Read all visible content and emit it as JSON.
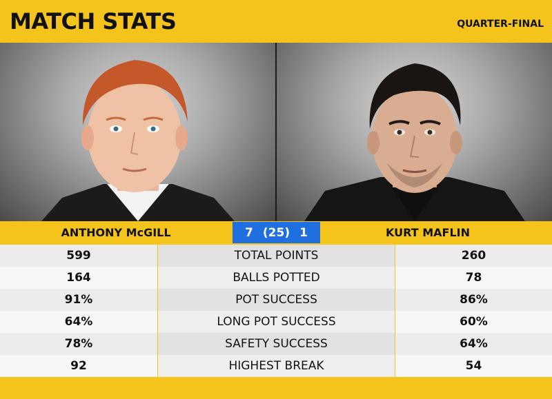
{
  "header": {
    "title": "MATCH STATS",
    "stage": "QUARTER-FINAL"
  },
  "players": {
    "left": {
      "name": "ANTHONY McGILL"
    },
    "right": {
      "name": "KURT MAFLIN"
    }
  },
  "score": {
    "left_frames": "7",
    "highest": "(25)",
    "right_frames": "1"
  },
  "stats": [
    {
      "left": "599",
      "label": "TOTAL POINTS",
      "right": "260"
    },
    {
      "left": "164",
      "label": "BALLS POTTED",
      "right": "78"
    },
    {
      "left": "91%",
      "label": "POT SUCCESS",
      "right": "86%"
    },
    {
      "left": "64%",
      "label": "LONG POT SUCCESS",
      "right": "60%"
    },
    {
      "left": "78%",
      "label": "SAFETY SUCCESS",
      "right": "64%"
    },
    {
      "left": "92",
      "label": "HIGHEST BREAK",
      "right": "54"
    }
  ],
  "colors": {
    "brand_yellow": "#f4c41c",
    "score_blue": "#1f6fe0"
  }
}
